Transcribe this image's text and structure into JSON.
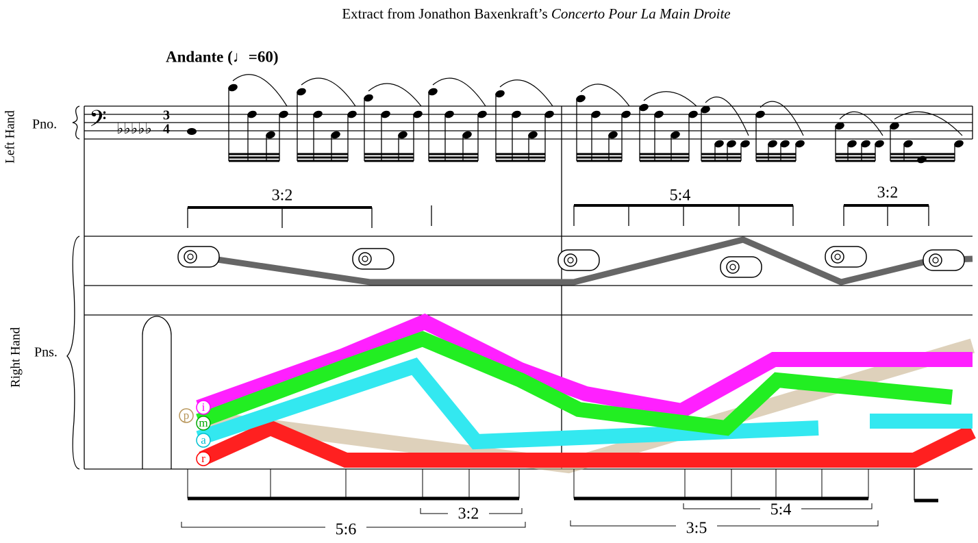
{
  "header": {
    "title": "Extract from Jonathon Baxenkraft’s ",
    "title_italic": "Concerto Pour La Main Droite"
  },
  "tempo": "Andante (♩=60)",
  "staves": [
    {
      "hand": "Left Hand",
      "instrument": "Pno."
    },
    {
      "hand": "Right Hand",
      "instrument": "Pns."
    }
  ],
  "tuplets_upper": [
    "3:2",
    "5:4",
    "3:2"
  ],
  "fingers": [
    "p",
    "i",
    "m",
    "a",
    "r"
  ],
  "tuplets_lower": [
    "5:6",
    "3:2",
    "5:4",
    "3:5"
  ]
}
